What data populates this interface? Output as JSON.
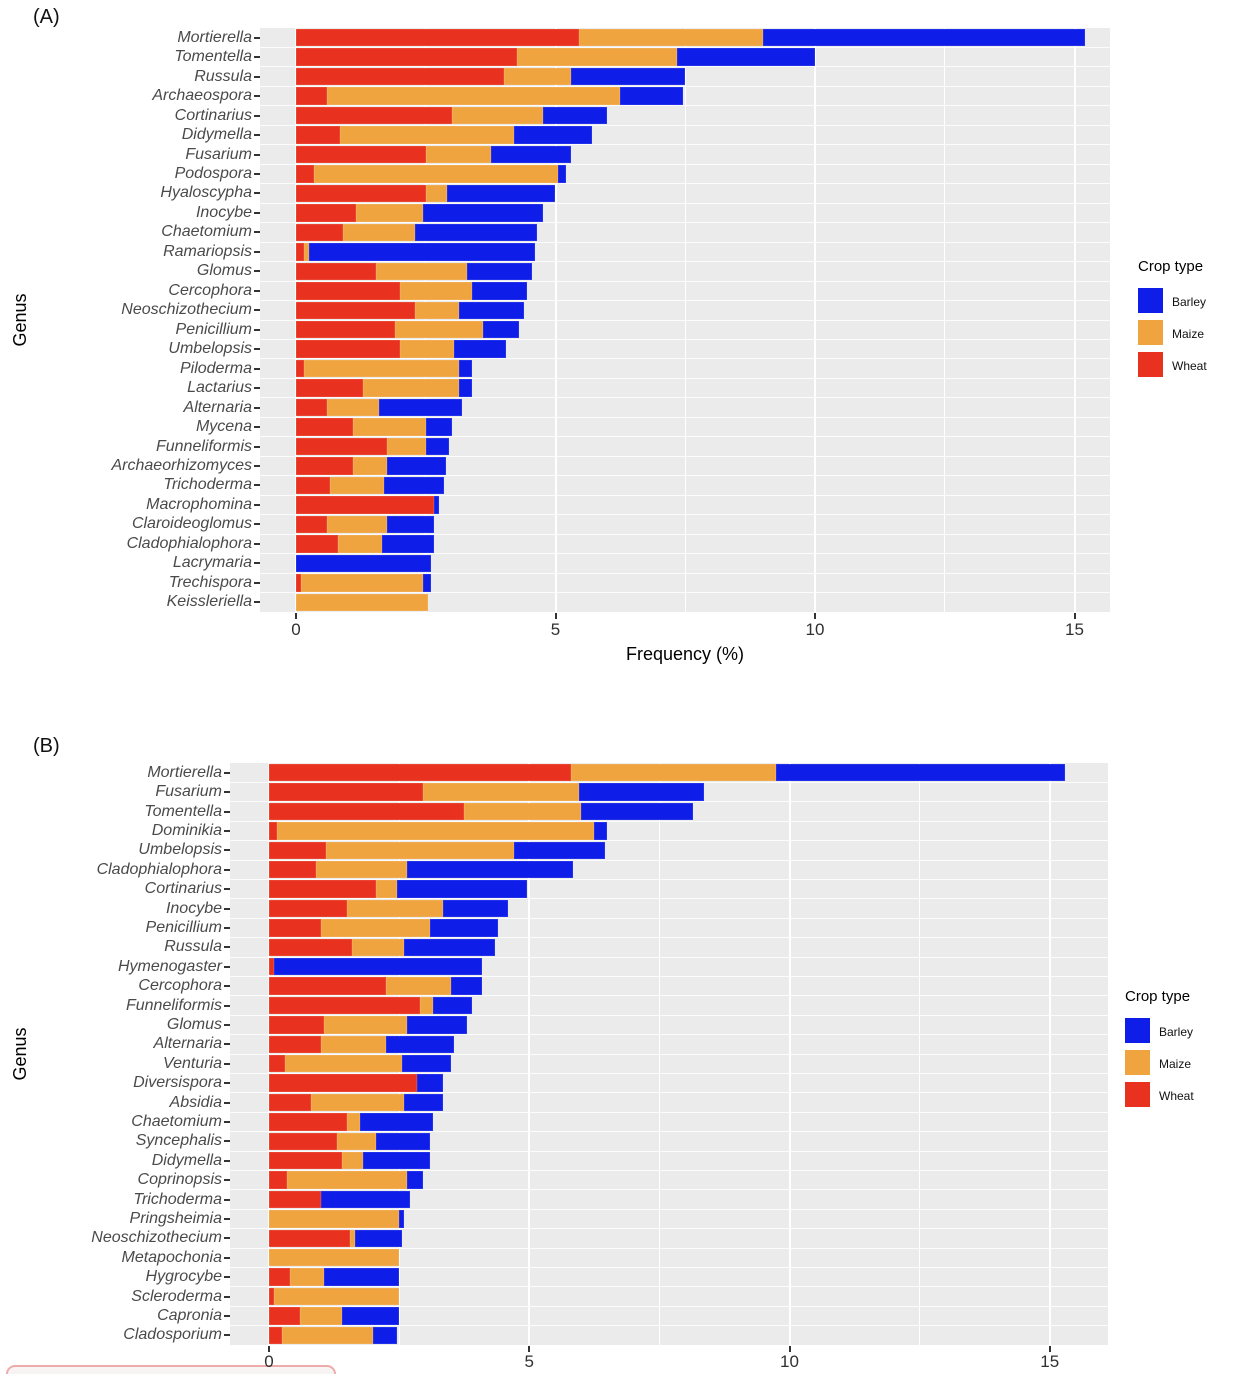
{
  "legend": {
    "title": "Crop type",
    "items": [
      {
        "label": "Barley",
        "color": "#0f1de8"
      },
      {
        "label": "Maize",
        "color": "#f0a440"
      },
      {
        "label": "Wheat",
        "color": "#e8311f"
      }
    ]
  },
  "chart_data": [
    {
      "type": "bar",
      "orientation": "horizontal",
      "stacked": true,
      "panel_tag": "(A)",
      "xlabel": "Frequency (%)",
      "ylabel": "Genus",
      "xlim": [
        0,
        15.7
      ],
      "x_ticks": [
        0,
        5,
        10,
        15
      ],
      "grid": true,
      "legend_position": "right",
      "categories": [
        "Mortierella",
        "Tomentella",
        "Russula",
        "Archaeospora",
        "Cortinarius",
        "Didymella",
        "Fusarium",
        "Podospora",
        "Hyaloscypha",
        "Inocybe",
        "Chaetomium",
        "Ramariopsis",
        "Glomus",
        "Cercophora",
        "Neoschizothecium",
        "Penicillium",
        "Umbelopsis",
        "Piloderma",
        "Lactarius",
        "Alternaria",
        "Mycena",
        "Funneliformis",
        "Archaeorhizomyces",
        "Trichoderma",
        "Macrophomina",
        "Claroideoglomus",
        "Cladophialophora",
        "Lacrymaria",
        "Trechispora",
        "Keissleriella"
      ],
      "series": [
        {
          "name": "Wheat",
          "color": "#e8311f",
          "values": [
            5.45,
            4.25,
            4.0,
            0.6,
            3.0,
            0.85,
            2.5,
            0.35,
            2.5,
            1.15,
            0.9,
            0.15,
            1.55,
            2.0,
            2.3,
            1.9,
            2.0,
            0.15,
            1.3,
            0.6,
            1.1,
            1.75,
            1.1,
            0.65,
            2.65,
            0.6,
            0.8,
            0,
            0.1,
            0
          ]
        },
        {
          "name": "Maize",
          "color": "#f0a440",
          "values": [
            3.55,
            3.1,
            1.3,
            5.65,
            1.75,
            3.35,
            1.25,
            4.7,
            0.4,
            1.3,
            1.4,
            0.1,
            1.75,
            1.4,
            0.85,
            1.7,
            1.05,
            3.0,
            1.85,
            1.0,
            1.4,
            0.75,
            0.65,
            1.05,
            0,
            1.15,
            0.85,
            0,
            2.35,
            2.55
          ]
        },
        {
          "name": "Barley",
          "color": "#0f1de8",
          "values": [
            6.2,
            2.65,
            2.2,
            1.2,
            1.25,
            1.5,
            1.55,
            0.15,
            2.1,
            2.3,
            2.35,
            4.35,
            1.25,
            1.05,
            1.25,
            0.7,
            1.0,
            0.25,
            0.25,
            1.6,
            0.5,
            0.45,
            1.15,
            1.15,
            0.1,
            0.9,
            1.0,
            2.6,
            0.15,
            0
          ]
        }
      ]
    },
    {
      "type": "bar",
      "orientation": "horizontal",
      "stacked": true,
      "panel_tag": "(B)",
      "xlabel": "",
      "ylabel": "Genus",
      "xlim": [
        0,
        15.7
      ],
      "x_ticks": [
        0,
        5,
        10,
        15
      ],
      "grid": true,
      "legend_position": "right",
      "categories": [
        "Mortierella",
        "Fusarium",
        "Tomentella",
        "Dominikia",
        "Umbelopsis",
        "Cladophialophora",
        "Cortinarius",
        "Inocybe",
        "Penicillium",
        "Russula",
        "Hymenogaster",
        "Cercophora",
        "Funneliformis",
        "Glomus",
        "Alternaria",
        "Venturia",
        "Diversispora",
        "Absidia",
        "Chaetomium",
        "Syncephalis",
        "Didymella",
        "Coprinopsis",
        "Trichoderma",
        "Pringsheimia",
        "Neoschizothecium",
        "Metapochonia",
        "Hygrocybe",
        "Scleroderma",
        "Capronia",
        "Cladosporium"
      ],
      "series": [
        {
          "name": "Wheat",
          "color": "#e8311f",
          "values": [
            5.8,
            2.95,
            3.75,
            0.15,
            1.1,
            0.9,
            2.05,
            1.5,
            1.0,
            1.6,
            0.1,
            2.25,
            2.9,
            1.05,
            1.0,
            0.3,
            2.85,
            0.8,
            1.5,
            1.3,
            1.4,
            0.35,
            1.0,
            0,
            1.55,
            0,
            0.4,
            0.1,
            0.6,
            0.25
          ]
        },
        {
          "name": "Maize",
          "color": "#f0a440",
          "values": [
            3.95,
            3.0,
            2.25,
            6.1,
            3.6,
            1.75,
            0.4,
            1.85,
            2.1,
            1.0,
            0,
            1.25,
            0.25,
            1.6,
            1.25,
            2.25,
            0,
            1.8,
            0.25,
            0.75,
            0.4,
            2.3,
            0,
            2.5,
            0.1,
            2.5,
            0.65,
            2.4,
            0.8,
            1.75
          ]
        },
        {
          "name": "Barley",
          "color": "#0f1de8",
          "values": [
            5.55,
            2.4,
            2.15,
            0.25,
            1.75,
            3.2,
            2.5,
            1.25,
            1.3,
            1.75,
            4.0,
            0.6,
            0.75,
            1.15,
            1.3,
            0.95,
            0.5,
            0.75,
            1.4,
            1.05,
            1.3,
            0.3,
            1.7,
            0.1,
            0.9,
            0,
            1.45,
            0,
            1.1,
            0.45
          ]
        }
      ]
    }
  ]
}
